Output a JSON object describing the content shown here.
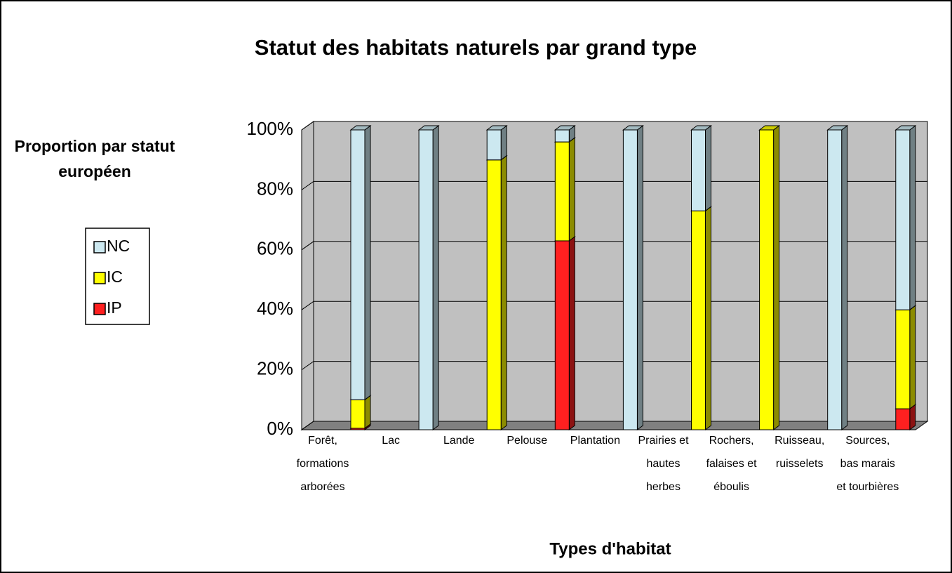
{
  "chart_data": {
    "type": "bar3d_stacked",
    "title": "Statut des habitats naturels par grand type",
    "y_label": "Proportion par statut européen",
    "x_label": "Types d'habitat",
    "categories": [
      "Forêt, formations arborées",
      "Lac",
      "Lande",
      "Pelouse",
      "Plantation",
      "Prairies et hautes herbes",
      "Rochers, falaises et éboulis",
      "Ruisseau, ruisselets",
      "Sources, bas marais et tourbières"
    ],
    "series": [
      {
        "name": "IP",
        "color": "#ff2020",
        "values": [
          0.5,
          0,
          0,
          63,
          0,
          0,
          0,
          0,
          7
        ]
      },
      {
        "name": "IC",
        "color": "#ffff00",
        "values": [
          9.5,
          0,
          90,
          33,
          0,
          73,
          100,
          0,
          33
        ]
      },
      {
        "name": "NC",
        "color": "#cce8f0",
        "values": [
          90,
          100,
          10,
          4,
          100,
          27,
          0,
          100,
          60
        ]
      }
    ],
    "ylim": [
      0,
      100
    ],
    "yticks": [
      {
        "value": 0,
        "label": "0%"
      },
      {
        "value": 20,
        "label": "20%"
      },
      {
        "value": 40,
        "label": "40%"
      },
      {
        "value": 60,
        "label": "60%"
      },
      {
        "value": 80,
        "label": "80%"
      },
      {
        "value": 100,
        "label": "100%"
      }
    ],
    "grid": true,
    "legend": "left"
  }
}
